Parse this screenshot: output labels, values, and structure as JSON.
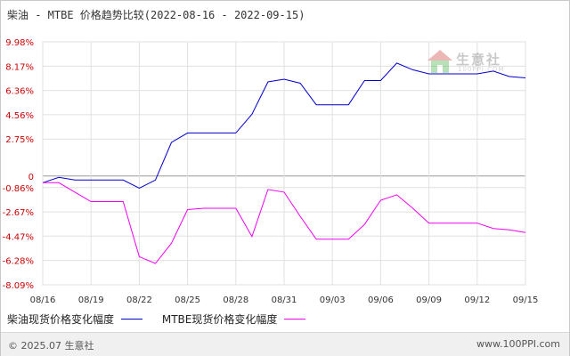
{
  "title": "柴油 - MTBE 价格趋势比较(2022-08-16 - 2022-09-15)",
  "legend": {
    "series1": "柴油现货价格变化幅度",
    "series2": "MTBE现货价格变化幅度"
  },
  "footer": {
    "copyright": "© 2025.07 生意社",
    "site": "www.100PPI.com"
  },
  "watermark": {
    "text": "生意社",
    "sub": "100PPI.COM"
  },
  "colors": {
    "series1": "#0000cc",
    "series2": "#ee00ee",
    "tick_y": "#cc0000",
    "grid": "#e0e0e0",
    "zero": "#999999"
  },
  "chart_data": {
    "type": "line",
    "title": "柴油 - MTBE 价格趋势比较(2022-08-16 - 2022-09-15)",
    "y_ticks": [
      "9.98%",
      "8.17%",
      "6.36%",
      "4.56%",
      "2.75%",
      "0",
      "-0.86%",
      "-2.67%",
      "-4.47%",
      "-6.28%",
      "-8.09%"
    ],
    "y_tick_values": [
      9.98,
      8.17,
      6.36,
      4.56,
      2.75,
      0,
      -0.86,
      -2.67,
      -4.47,
      -6.28,
      -8.09
    ],
    "ylim": [
      -8.09,
      9.98
    ],
    "x_ticks": [
      "08/16",
      "08/19",
      "08/22",
      "08/25",
      "08/28",
      "08/31",
      "09/03",
      "09/06",
      "09/09",
      "09/12",
      "09/15"
    ],
    "grid": true,
    "legend_position": "bottom",
    "x": [
      "08/16",
      "08/17",
      "08/18",
      "08/19",
      "08/20",
      "08/21",
      "08/22",
      "08/23",
      "08/24",
      "08/25",
      "08/26",
      "08/27",
      "08/28",
      "08/29",
      "08/30",
      "08/31",
      "09/01",
      "09/02",
      "09/03",
      "09/04",
      "09/05",
      "09/06",
      "09/07",
      "09/08",
      "09/09",
      "09/10",
      "09/11",
      "09/12",
      "09/13",
      "09/14",
      "09/15"
    ],
    "series": [
      {
        "name": "柴油现货价格变化幅度",
        "values": [
          -0.5,
          -0.1,
          -0.3,
          -0.3,
          -0.3,
          -0.3,
          -0.9,
          -0.3,
          2.5,
          3.2,
          3.2,
          3.2,
          3.2,
          4.6,
          7.0,
          7.2,
          6.9,
          5.3,
          5.3,
          5.3,
          7.1,
          7.1,
          8.4,
          7.9,
          7.6,
          7.6,
          7.6,
          7.6,
          7.8,
          7.4,
          7.3
        ]
      },
      {
        "name": "MTBE现货价格变化幅度",
        "values": [
          -0.5,
          -0.5,
          -1.2,
          -1.9,
          -1.9,
          -1.9,
          -6.0,
          -6.5,
          -5.0,
          -2.5,
          -2.4,
          -2.4,
          -2.4,
          -4.5,
          -1.0,
          -1.2,
          -3.0,
          -4.7,
          -4.7,
          -4.7,
          -3.6,
          -1.8,
          -1.4,
          -2.4,
          -3.5,
          -3.5,
          -3.5,
          -3.5,
          -3.9,
          -4.0,
          -4.2
        ]
      }
    ]
  }
}
